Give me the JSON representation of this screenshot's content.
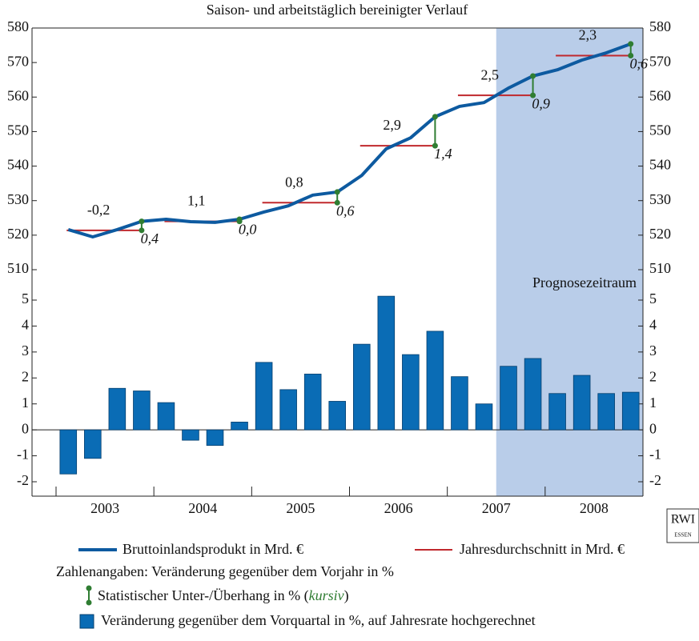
{
  "chart_data": [
    {
      "type": "line",
      "title": "Saison- und arbeitstäglich bereinigter Verlauf",
      "years": [
        "2003",
        "2004",
        "2005",
        "2006",
        "2007",
        "2008"
      ],
      "series": [
        {
          "name": "Bruttoinlandsprodukt in Mrd. €",
          "color": "#0d5aa0",
          "values": [
            521.6,
            519.5,
            521.6,
            524.0,
            524.6,
            523.9,
            523.7,
            524.6,
            526.7,
            528.5,
            531.6,
            532.5,
            537.3,
            545.0,
            548.2,
            554.3,
            557.3,
            558.4,
            562.6,
            566.1,
            567.9,
            570.7,
            572.8,
            575.4
          ]
        },
        {
          "name": "Jahresdurchschnitt in Mrd. €",
          "color": "#c0282d",
          "per": "year",
          "values": [
            521.4,
            524.0,
            529.4,
            545.9,
            560.5,
            572.0
          ]
        }
      ],
      "annual_change": [
        {
          "value": -0.2,
          "label": "-0,2"
        },
        {
          "value": 1.1,
          "label": "1,1"
        },
        {
          "value": 0.8,
          "label": "0,8"
        },
        {
          "value": 2.9,
          "label": "2,9"
        },
        {
          "value": 2.5,
          "label": "2,5"
        },
        {
          "value": 2.3,
          "label": "2,3"
        }
      ],
      "overhang": [
        {
          "value": 0.4,
          "label": "0,4"
        },
        {
          "value": 0.0,
          "label": "0,0"
        },
        {
          "value": 0.6,
          "label": "0,6"
        },
        {
          "value": 1.4,
          "label": "1,4"
        },
        {
          "value": 0.9,
          "label": "0,9"
        },
        {
          "value": 0.6,
          "label": "0,6"
        }
      ],
      "overhang_color": "#2f7d32",
      "ylim": [
        510,
        580
      ],
      "yticks": [
        510,
        520,
        530,
        540,
        550,
        560,
        570,
        580
      ],
      "y2lim": [
        510,
        580
      ],
      "y2ticks": [
        510,
        520,
        530,
        540,
        550,
        560,
        570,
        580
      ],
      "forecast": {
        "label": "Prognosezeitraum",
        "start_index": 18,
        "color": "#b9cde9"
      }
    },
    {
      "type": "bar",
      "name": "Veränderung gegenüber dem Vorquartal in %, auf Jahresrate hochgerechnet",
      "years": [
        "2003",
        "2004",
        "2005",
        "2006",
        "2007",
        "2008"
      ],
      "color": "#0a6cb5",
      "values": [
        -1.7,
        -1.1,
        1.6,
        1.5,
        1.05,
        -0.4,
        -0.6,
        0.3,
        2.6,
        1.55,
        2.15,
        1.1,
        3.3,
        5.15,
        2.9,
        3.8,
        2.05,
        1.0,
        2.45,
        2.75,
        1.4,
        2.1,
        1.4,
        1.45
      ],
      "ylim": [
        -2,
        5
      ],
      "yticks": [
        -2,
        -1,
        0,
        1,
        2,
        3,
        4,
        5
      ],
      "y2lim": [
        -2,
        5
      ],
      "y2ticks": [
        -2,
        -1,
        0,
        1,
        2,
        3,
        4,
        5
      ]
    }
  ],
  "legend": {
    "note": "Zahlenangaben: Veränderung gegenüber dem Vorjahr in %",
    "overhang_parts": [
      "Statistischer Unter-/Überhang in % (",
      "kursiv",
      ")"
    ]
  },
  "logo": {
    "name": "RWI",
    "city": "ESSEN"
  }
}
